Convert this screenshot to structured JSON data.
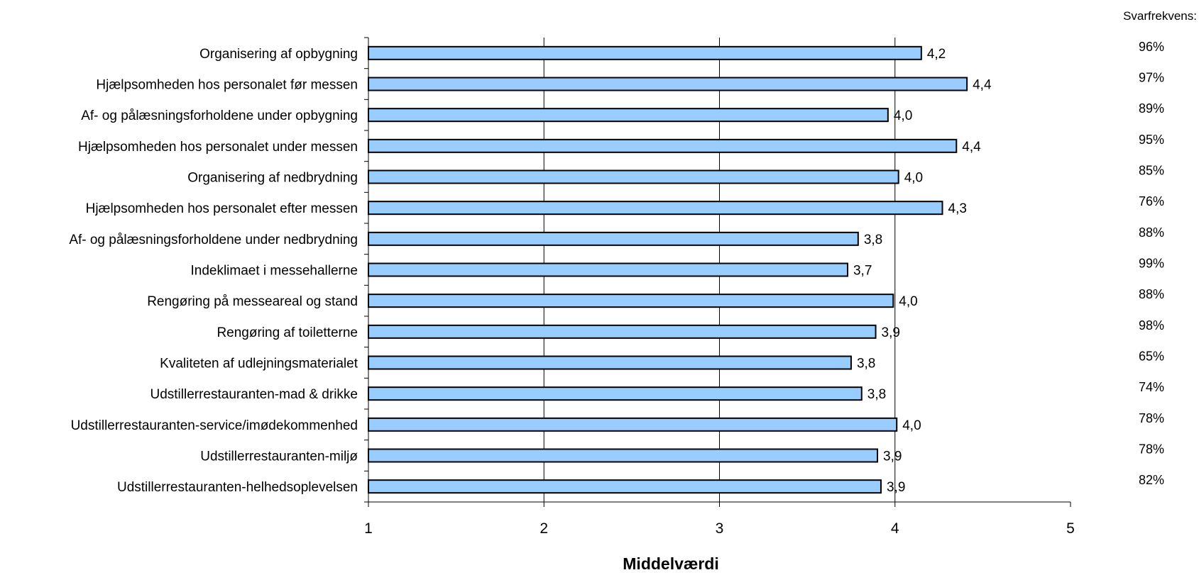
{
  "chart_data": {
    "type": "bar",
    "orientation": "horizontal",
    "xlabel": "Middelværdi",
    "xlim": [
      1,
      5
    ],
    "xticks": [
      "1",
      "2",
      "3",
      "4",
      "5"
    ],
    "grid": "vertical",
    "bar_color": "#99ccff",
    "categories": [
      "Organisering af opbygning",
      "Hjælpsomheden hos personalet før messen",
      "Af- og pålæsningsforholdene under opbygning",
      "Hjælpsomheden hos personalet under messen",
      "Organisering af nedbrydning",
      "Hjælpsomheden hos personalet efter messen",
      "Af- og pålæsningsforholdene under nedbrydning",
      "Indeklimaet i messehallerne",
      "Rengøring på messeareal og stand",
      "Rengøring af toiletterne",
      "Kvaliteten af udlejningsmaterialet",
      "Udstillerrestauranten-mad & drikke",
      "Udstillerrestauranten-service/imødekommenhed",
      "Udstillerrestauranten-miljø",
      "Udstillerrestauranten-helhedsoplevelsen"
    ],
    "values": [
      4.15,
      4.41,
      3.96,
      4.35,
      4.02,
      4.27,
      3.79,
      3.73,
      3.99,
      3.89,
      3.75,
      3.81,
      4.01,
      3.9,
      3.92
    ],
    "value_labels": [
      "4,2",
      "4,4",
      "4,0",
      "4,4",
      "4,0",
      "4,3",
      "3,8",
      "3,7",
      "4,0",
      "3,9",
      "3,8",
      "3,8",
      "4,0",
      "3,9",
      "3,9"
    ],
    "response_rate_header": "Svarfrekvens:",
    "response_rates": [
      "96%",
      "97%",
      "89%",
      "95%",
      "85%",
      "76%",
      "88%",
      "99%",
      "88%",
      "98%",
      "65%",
      "74%",
      "78%",
      "78%",
      "82%"
    ]
  }
}
